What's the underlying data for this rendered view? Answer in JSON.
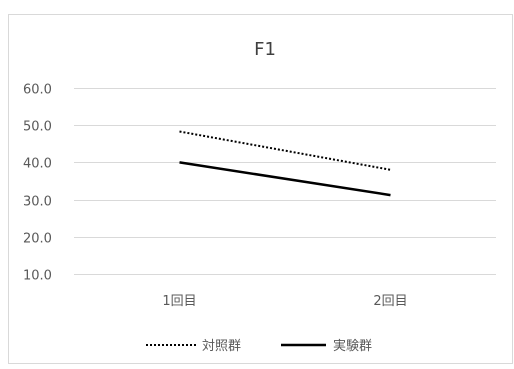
{
  "chart_data": {
    "type": "line",
    "title": "F1",
    "xlabel": "",
    "ylabel": "",
    "categories": [
      "1回目",
      "2回目"
    ],
    "ylim": [
      10.0,
      60.0
    ],
    "yticks": [
      10.0,
      20.0,
      30.0,
      40.0,
      50.0,
      60.0
    ],
    "ytick_labels": [
      "10.0",
      "20.0",
      "30.0",
      "40.0",
      "50.0",
      "60.0"
    ],
    "grid": true,
    "legend_position": "bottom",
    "series": [
      {
        "name": "対照群",
        "values": [
          48.3,
          38.0
        ],
        "style": "dotted",
        "color": "#000000"
      },
      {
        "name": "実験群",
        "values": [
          40.0,
          31.2
        ],
        "style": "solid",
        "color": "#000000"
      }
    ],
    "colors": {
      "grid": "#d9d9d9",
      "text": "#595959",
      "title": "#404040",
      "border": "#d9d9d9"
    }
  }
}
